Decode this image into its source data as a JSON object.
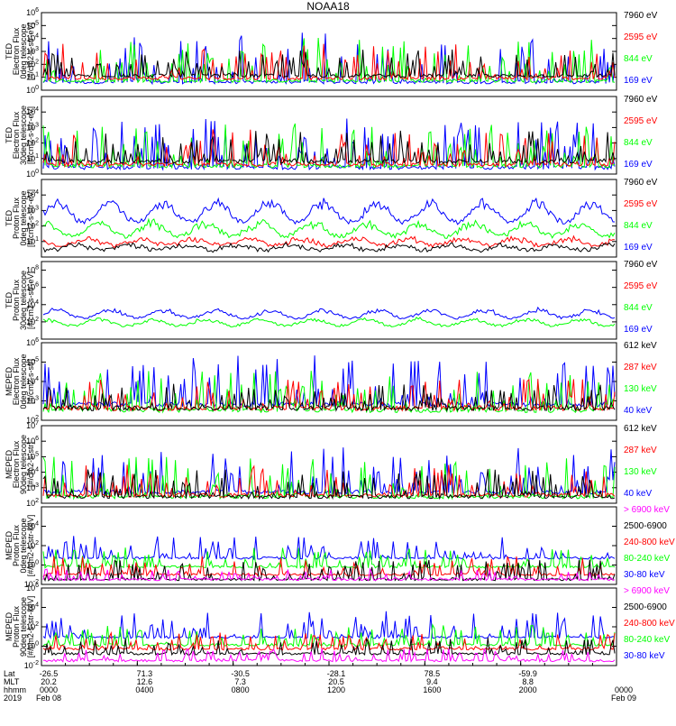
{
  "title": "NOAA18",
  "colors": {
    "black": "#000000",
    "red": "#ff0000",
    "green": "#00ff00",
    "blue": "#0000ff",
    "magenta": "#ff00ff"
  },
  "chart_data": [
    {
      "type": "line",
      "ylabel": [
        "TED",
        "Electron Flux",
        "0deg telescope",
        "[#/cm2-s-str-eV]"
      ],
      "yscale": "log",
      "ylim": [
        1,
        1000000
      ],
      "ytick_exponents": [
        0,
        1,
        2,
        3,
        4,
        5,
        6
      ],
      "bursty": true,
      "base_exp": [
        0.5,
        0.6,
        0.8,
        1.0
      ],
      "peak_exp": [
        4.5,
        4.2,
        3.6,
        3.2
      ],
      "series": [
        {
          "name": "169 eV",
          "color": "blue"
        },
        {
          "name": "844 eV",
          "color": "green"
        },
        {
          "name": "2595 eV",
          "color": "red"
        },
        {
          "name": "7960 eV",
          "color": "black"
        }
      ]
    },
    {
      "type": "line",
      "ylabel": [
        "TED",
        "Electron Flux",
        "30deg telescope",
        "[#/cm2-s-str-eV]"
      ],
      "yscale": "log",
      "ylim": [
        1,
        100000
      ],
      "ytick_exponents": [
        0,
        1,
        2,
        3,
        4
      ],
      "bursty": true,
      "base_exp": [
        0.3,
        0.4,
        0.5,
        0.7
      ],
      "peak_exp": [
        3.6,
        3.3,
        3.0,
        2.8
      ],
      "series": [
        {
          "name": "169 eV",
          "color": "blue"
        },
        {
          "name": "844 eV",
          "color": "green"
        },
        {
          "name": "2595 eV",
          "color": "red"
        },
        {
          "name": "7960 eV",
          "color": "black"
        }
      ]
    },
    {
      "type": "line",
      "ylabel": [
        "TED",
        "Proton Flux",
        "0deg telescope",
        "[#/cm2-s-str-eV]"
      ],
      "yscale": "log",
      "ylim": [
        1,
        100000
      ],
      "ytick_exponents": [
        1,
        2,
        3,
        4
      ],
      "bursty": false,
      "base_exp": [
        2.4,
        1.5,
        0.9,
        0.6
      ],
      "amp": [
        1.5,
        1.0,
        0.5,
        0.4
      ],
      "series": [
        {
          "name": "169 eV",
          "color": "blue"
        },
        {
          "name": "844 eV",
          "color": "green"
        },
        {
          "name": "2595 eV",
          "color": "red"
        },
        {
          "name": "7960 eV",
          "color": "black"
        }
      ]
    },
    {
      "type": "line",
      "ylabel": [
        "TED",
        "Proton Flux",
        "30deg telescope",
        "[#/cm2-s-str-eV]"
      ],
      "yscale": "log",
      "ylim": [
        1,
        1000000000
      ],
      "ytick_exponents": [
        2,
        4,
        6,
        8
      ],
      "bursty": false,
      "base_exp": [
        2.6,
        1.7,
        null,
        null
      ],
      "amp": [
        1.1,
        0.9,
        0,
        0
      ],
      "series": [
        {
          "name": "169 eV",
          "color": "blue"
        },
        {
          "name": "844 eV",
          "color": "green"
        },
        {
          "name": "2595 eV",
          "color": "red"
        },
        {
          "name": "7960 eV",
          "color": "black"
        }
      ]
    },
    {
      "type": "line",
      "ylabel": [
        "MEPED",
        "Electron Flux",
        "0deg telescope",
        "[#/cm2-s-str]"
      ],
      "yscale": "log",
      "ylim": [
        100,
        1000000
      ],
      "ytick_exponents": [
        2,
        3,
        4,
        5,
        6
      ],
      "bursty": true,
      "base_exp": [
        2.7,
        2.4,
        2.5,
        2.5
      ],
      "peak_exp": [
        5.4,
        4.6,
        4.2,
        3.9
      ],
      "series": [
        {
          "name": "40 keV",
          "color": "blue"
        },
        {
          "name": "130 keV",
          "color": "green"
        },
        {
          "name": "287 keV",
          "color": "red"
        },
        {
          "name": "612 keV",
          "color": "black"
        }
      ]
    },
    {
      "type": "line",
      "ylabel": [
        "MEPED",
        "Electron Flux",
        "90deg telescope",
        "[#/cm2-s-str]"
      ],
      "yscale": "log",
      "ylim": [
        100,
        10000000
      ],
      "ytick_exponents": [
        2,
        3,
        4,
        5,
        6,
        7
      ],
      "bursty": true,
      "base_exp": [
        2.6,
        2.3,
        2.4,
        2.3
      ],
      "peak_exp": [
        5.6,
        5.0,
        4.5,
        4.2
      ],
      "series": [
        {
          "name": "40 keV",
          "color": "blue"
        },
        {
          "name": "130 keV",
          "color": "green"
        },
        {
          "name": "287 keV",
          "color": "red"
        },
        {
          "name": "612 keV",
          "color": "black"
        }
      ]
    },
    {
      "type": "line",
      "ylabel": [
        "MEPED",
        "Proton Flux",
        "0deg telescope",
        "[#/cm2-s-str-keV]"
      ],
      "yscale": "log",
      "ylim": [
        0.01,
        1000000
      ],
      "ytick_exponents": [
        -2,
        0,
        2,
        4
      ],
      "bursty": true,
      "base_exp": [
        0.6,
        -0.3,
        -1.1,
        -1.6,
        -1.6
      ],
      "peak_exp": [
        3.0,
        1.8,
        1.0,
        0.6,
        -0.4
      ],
      "series": [
        {
          "name": "30-80 keV",
          "color": "blue"
        },
        {
          "name": "80-240 keV",
          "color": "green"
        },
        {
          "name": "240-800 keV",
          "color": "red"
        },
        {
          "name": "2500-6900",
          "color": "black"
        },
        {
          "name": "> 6900 keV",
          "color": "magenta"
        }
      ]
    },
    {
      "type": "line",
      "ylabel": [
        "MEPED",
        "Proton Flux",
        "90deg telescope",
        "[#/cm2-s-str-keV]"
      ],
      "yscale": "log",
      "ylim": [
        0.01,
        1000000
      ],
      "ytick_exponents": [
        -2,
        0,
        2,
        4,
        6
      ],
      "bursty": true,
      "base_exp": [
        0.8,
        0.0,
        -0.4,
        -0.9,
        -1.6
      ],
      "peak_exp": [
        3.6,
        2.2,
        1.4,
        0.9,
        -0.2
      ],
      "series": [
        {
          "name": "30-80 keV",
          "color": "blue"
        },
        {
          "name": "80-240 keV",
          "color": "green"
        },
        {
          "name": "240-800 keV",
          "color": "red"
        },
        {
          "name": "2500-6900",
          "color": "black"
        },
        {
          "name": "> 6900 keV",
          "color": "magenta"
        }
      ]
    }
  ],
  "x_axis": {
    "row_labels": [
      "Lat",
      "MLT",
      "hhmm",
      "2019"
    ],
    "ticks": [
      {
        "lat": "-26.5",
        "mlt": "20.2",
        "hhmm": "0000",
        "date": "Feb 08"
      },
      {
        "lat": "71.3",
        "mlt": "12.6",
        "hhmm": "0400",
        "date": ""
      },
      {
        "lat": "-30.5",
        "mlt": "7.3",
        "hhmm": "0800",
        "date": ""
      },
      {
        "lat": "-28.1",
        "mlt": "20.5",
        "hhmm": "1200",
        "date": ""
      },
      {
        "lat": "78.5",
        "mlt": "9.4",
        "hhmm": "1600",
        "date": ""
      },
      {
        "lat": "-59.9",
        "mlt": "8.8",
        "hhmm": "2000",
        "date": ""
      },
      {
        "lat": "",
        "mlt": "",
        "hhmm": "0000",
        "date": "Feb 09"
      }
    ]
  }
}
